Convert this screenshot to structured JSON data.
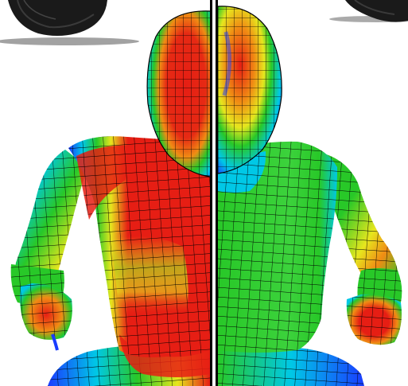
{
  "scene": {
    "description_label": "",
    "panels": [
      {
        "id": "left",
        "map": "high-stress"
      },
      {
        "id": "right",
        "map": "low-stress"
      }
    ]
  },
  "colors": {
    "background": "#ffffff",
    "divider": "#000000",
    "mesh_lines": "#000000",
    "tire": "#1a1a1a",
    "scale_blue": "#1a3cff",
    "scale_cyan": "#00c8e6",
    "scale_green": "#28c828",
    "scale_yellow": "#e6e61e",
    "scale_orange": "#f08c14",
    "scale_red": "#e61e14"
  },
  "icons": {
    "left_panel": "heatmap-mannequin-left-image",
    "right_panel": "heatmap-mannequin-right-image",
    "tire": "tire-icon"
  }
}
